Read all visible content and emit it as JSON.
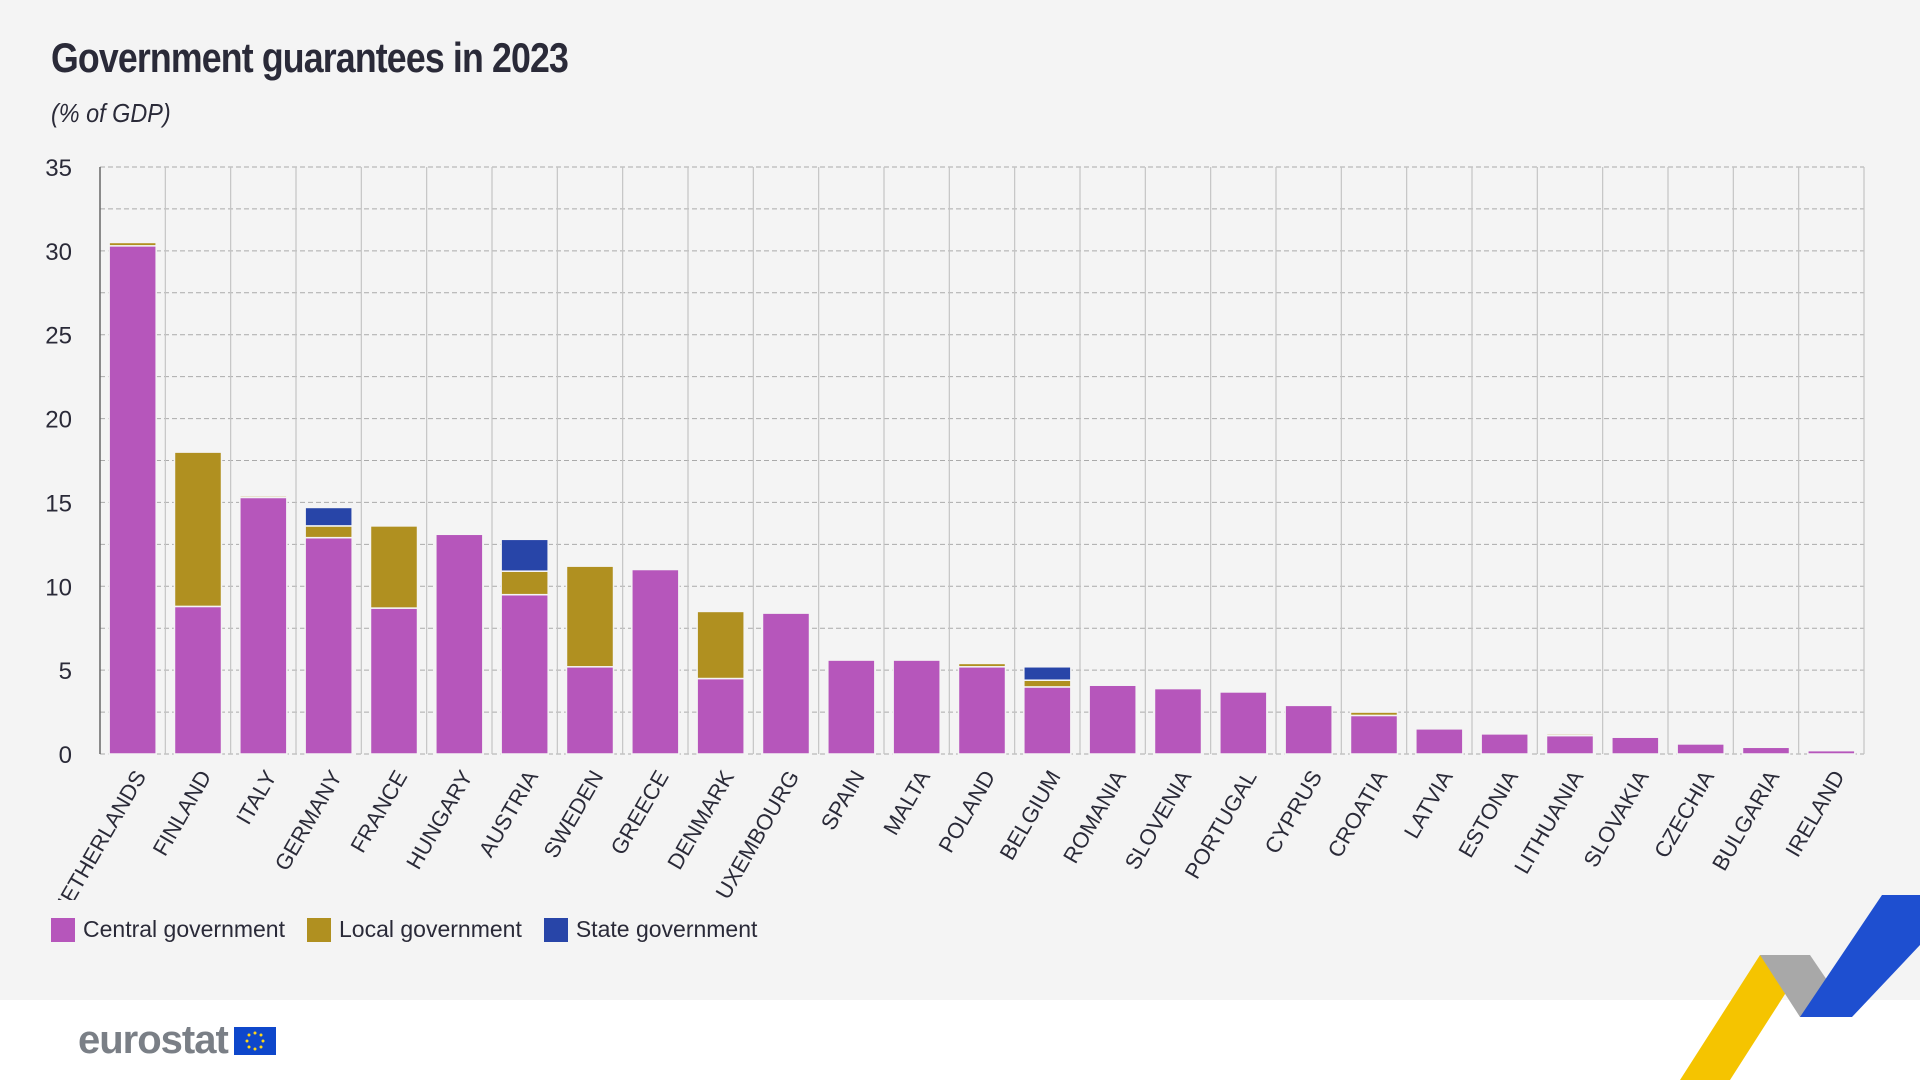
{
  "header": {
    "title": "Government guarantees in 2023",
    "subtitle": "(% of GDP)"
  },
  "chart_data": {
    "type": "bar",
    "stacked": true,
    "title": "Government guarantees in 2023",
    "subtitle": "(% of GDP)",
    "xlabel": "",
    "ylabel": "",
    "ylim": [
      0,
      35
    ],
    "yticks": [
      0,
      5,
      10,
      15,
      20,
      25,
      30,
      35
    ],
    "grid": true,
    "legend": "bottom-left",
    "categories": [
      "NETHERLANDS",
      "FINLAND",
      "ITALY",
      "GERMANY",
      "FRANCE",
      "HUNGARY",
      "AUSTRIA",
      "SWEDEN",
      "GREECE",
      "DENMARK",
      "LUXEMBOURG",
      "SPAIN",
      "MALTA",
      "POLAND",
      "BELGIUM",
      "ROMANIA",
      "SLOVENIA",
      "PORTUGAL",
      "CYPRUS",
      "CROATIA",
      "LATVIA",
      "ESTONIA",
      "LITHUANIA",
      "SLOVAKIA",
      "CZECHIA",
      "BULGARIA",
      "IRELAND"
    ],
    "series": [
      {
        "name": "Central government",
        "color": "#b656bb",
        "values": [
          30.3,
          8.8,
          15.3,
          12.9,
          8.7,
          13.1,
          9.5,
          5.2,
          11.0,
          4.5,
          8.4,
          5.6,
          5.6,
          5.2,
          4.0,
          4.1,
          3.9,
          3.7,
          2.9,
          2.3,
          1.5,
          1.2,
          1.1,
          1.0,
          0.6,
          0.4,
          0.2
        ]
      },
      {
        "name": "Local government",
        "color": "#b09020",
        "values": [
          0.2,
          9.2,
          0.1,
          0.7,
          4.9,
          0,
          1.4,
          6.0,
          0,
          4.0,
          0,
          0,
          0,
          0.2,
          0.4,
          0,
          0,
          0,
          0,
          0.2,
          0,
          0,
          0.1,
          0,
          0,
          0,
          0
        ]
      },
      {
        "name": "State government",
        "color": "#2845a8",
        "values": [
          0,
          0,
          0,
          1.1,
          0,
          0,
          1.9,
          0,
          0,
          0,
          0,
          0,
          0,
          0,
          0.8,
          0,
          0,
          0,
          0,
          0,
          0,
          0,
          0,
          0,
          0,
          0,
          0
        ]
      }
    ]
  },
  "footer": {
    "logo": "eurostat"
  }
}
